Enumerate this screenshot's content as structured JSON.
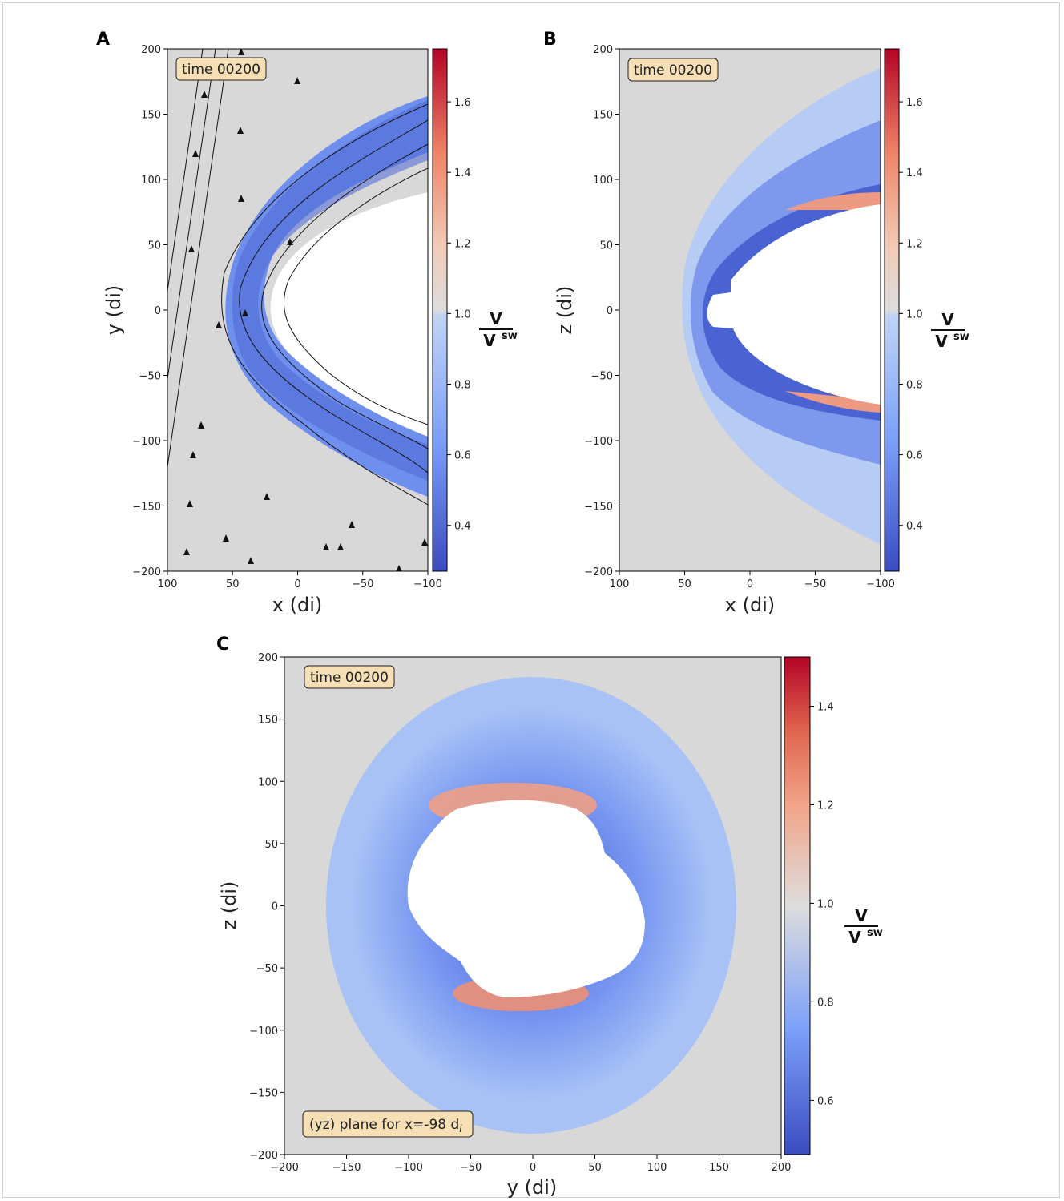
{
  "panels": [
    {
      "letter": "A",
      "badge": "time 00200",
      "xlabel": "x (di)",
      "ylabel": "y (di)",
      "xlim": [
        100,
        -100
      ],
      "ylim": [
        -200,
        200
      ],
      "xticks": [
        100,
        50,
        0,
        -50,
        -100
      ],
      "yticks": [
        200,
        150,
        100,
        50,
        0,
        -50,
        -100,
        -150,
        -200
      ],
      "cbar_ticks": [
        1.6,
        1.4,
        1.2,
        1.0,
        0.8,
        0.6,
        0.4
      ],
      "cbar_range": [
        0.27,
        1.75
      ],
      "cbar_label_top": "V",
      "cbar_label_bottom": "V",
      "cbar_label_sup": "sw",
      "field_lines": true
    },
    {
      "letter": "B",
      "badge": "time 00200",
      "xlabel": "x (di)",
      "ylabel": "z (di)",
      "xlim": [
        100,
        -100
      ],
      "ylim": [
        -200,
        200
      ],
      "xticks": [
        100,
        50,
        0,
        -50,
        -100
      ],
      "yticks": [
        200,
        150,
        100,
        50,
        0,
        -50,
        -100,
        -150,
        -200
      ],
      "cbar_ticks": [
        1.6,
        1.4,
        1.2,
        1.0,
        0.8,
        0.6,
        0.4
      ],
      "cbar_range": [
        0.27,
        1.75
      ],
      "cbar_label_top": "V",
      "cbar_label_bottom": "V",
      "cbar_label_sup": "sw",
      "field_lines": false
    },
    {
      "letter": "C",
      "badge": "time 00200",
      "badge2": "(yz) plane for x=-98 d",
      "badge2_sub": "i",
      "xlabel": "y (di)",
      "ylabel": "z (di)",
      "xlim": [
        -200,
        200
      ],
      "ylim": [
        -200,
        200
      ],
      "xticks": [
        -200,
        -150,
        -100,
        -50,
        0,
        50,
        100,
        150,
        200
      ],
      "yticks": [
        200,
        150,
        100,
        50,
        0,
        -50,
        -100,
        -150,
        -200
      ],
      "cbar_ticks": [
        1.4,
        1.2,
        1.0,
        0.8,
        0.6
      ],
      "cbar_range": [
        0.49,
        1.5
      ],
      "cbar_label_top": "V",
      "cbar_label_bottom": "V",
      "cbar_label_sup": "sw",
      "field_lines": false
    }
  ],
  "chart_data": [
    {
      "type": "heatmap",
      "panel": "A",
      "quantity": "V / Vsw",
      "x_axis": "x (di)",
      "y_axis": "y (di)",
      "xlim": [
        100,
        -100
      ],
      "ylim": [
        -200,
        200
      ],
      "vrange": [
        0.27,
        1.75
      ]
    },
    {
      "type": "heatmap",
      "panel": "B",
      "quantity": "V / Vsw",
      "x_axis": "x (di)",
      "y_axis": "z (di)",
      "xlim": [
        100,
        -100
      ],
      "ylim": [
        -200,
        200
      ],
      "vrange": [
        0.27,
        1.75
      ]
    },
    {
      "type": "heatmap",
      "panel": "C",
      "quantity": "V / Vsw",
      "x_axis": "y (di)",
      "y_axis": "z (di)",
      "xlim": [
        -200,
        200
      ],
      "ylim": [
        -200,
        200
      ],
      "vrange": [
        0.49,
        1.5
      ],
      "plane_x": -98
    }
  ],
  "colors": {
    "background": "#d8d8d8",
    "cmap_low": "#3b4cc0",
    "cmap_mid": "#dddddd",
    "cmap_high": "#b40426",
    "badge_fill": "#f6deb5",
    "field_line": "#111111"
  }
}
